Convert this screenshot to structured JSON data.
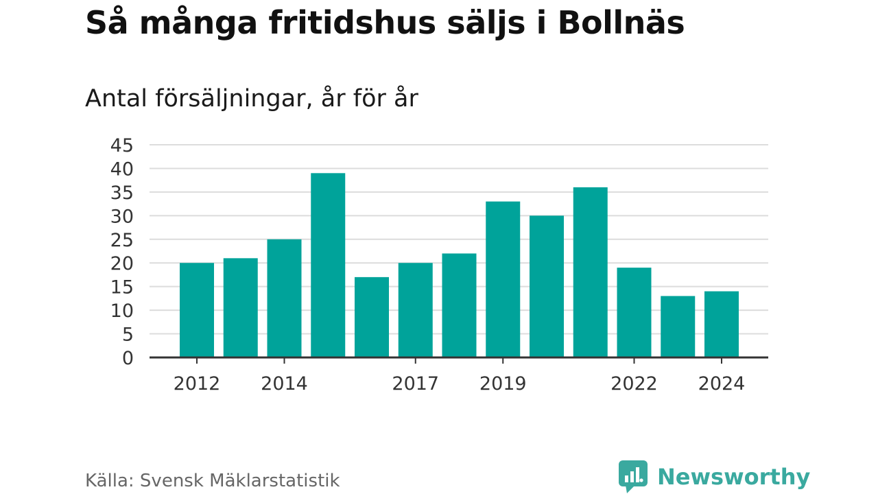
{
  "title": "Så många fritidshus säljs i Bollnäs",
  "subtitle": "Antal försäljningar, år för år",
  "source": "Källa: Svensk Mäklarstatistik",
  "brand": {
    "name": "Newsworthy",
    "icon": "newsworthy-logo-icon",
    "color": "#3aa99f"
  },
  "colors": {
    "bar": "#00a39a",
    "grid": "#dcdcdc",
    "axis": "#333333",
    "tick_text": "#333333"
  },
  "chart_data": {
    "type": "bar",
    "title": "Så många fritidshus säljs i Bollnäs",
    "subtitle": "Antal försäljningar, år för år",
    "categories": [
      "2012",
      "2013",
      "2014",
      "2015",
      "2016",
      "2017",
      "2018",
      "2019",
      "2020",
      "2021",
      "2022",
      "2023",
      "2024"
    ],
    "values": [
      20,
      21,
      25,
      39,
      17,
      20,
      22,
      33,
      30,
      36,
      19,
      13,
      14
    ],
    "x_tick_labels": [
      "2012",
      "2014",
      "2017",
      "2019",
      "2022",
      "2024"
    ],
    "y_ticks": [
      0,
      5,
      10,
      15,
      20,
      25,
      30,
      35,
      40,
      45
    ],
    "ylim": [
      0,
      45
    ],
    "xlabel": "",
    "ylabel": "",
    "grid": true,
    "legend": "none"
  }
}
